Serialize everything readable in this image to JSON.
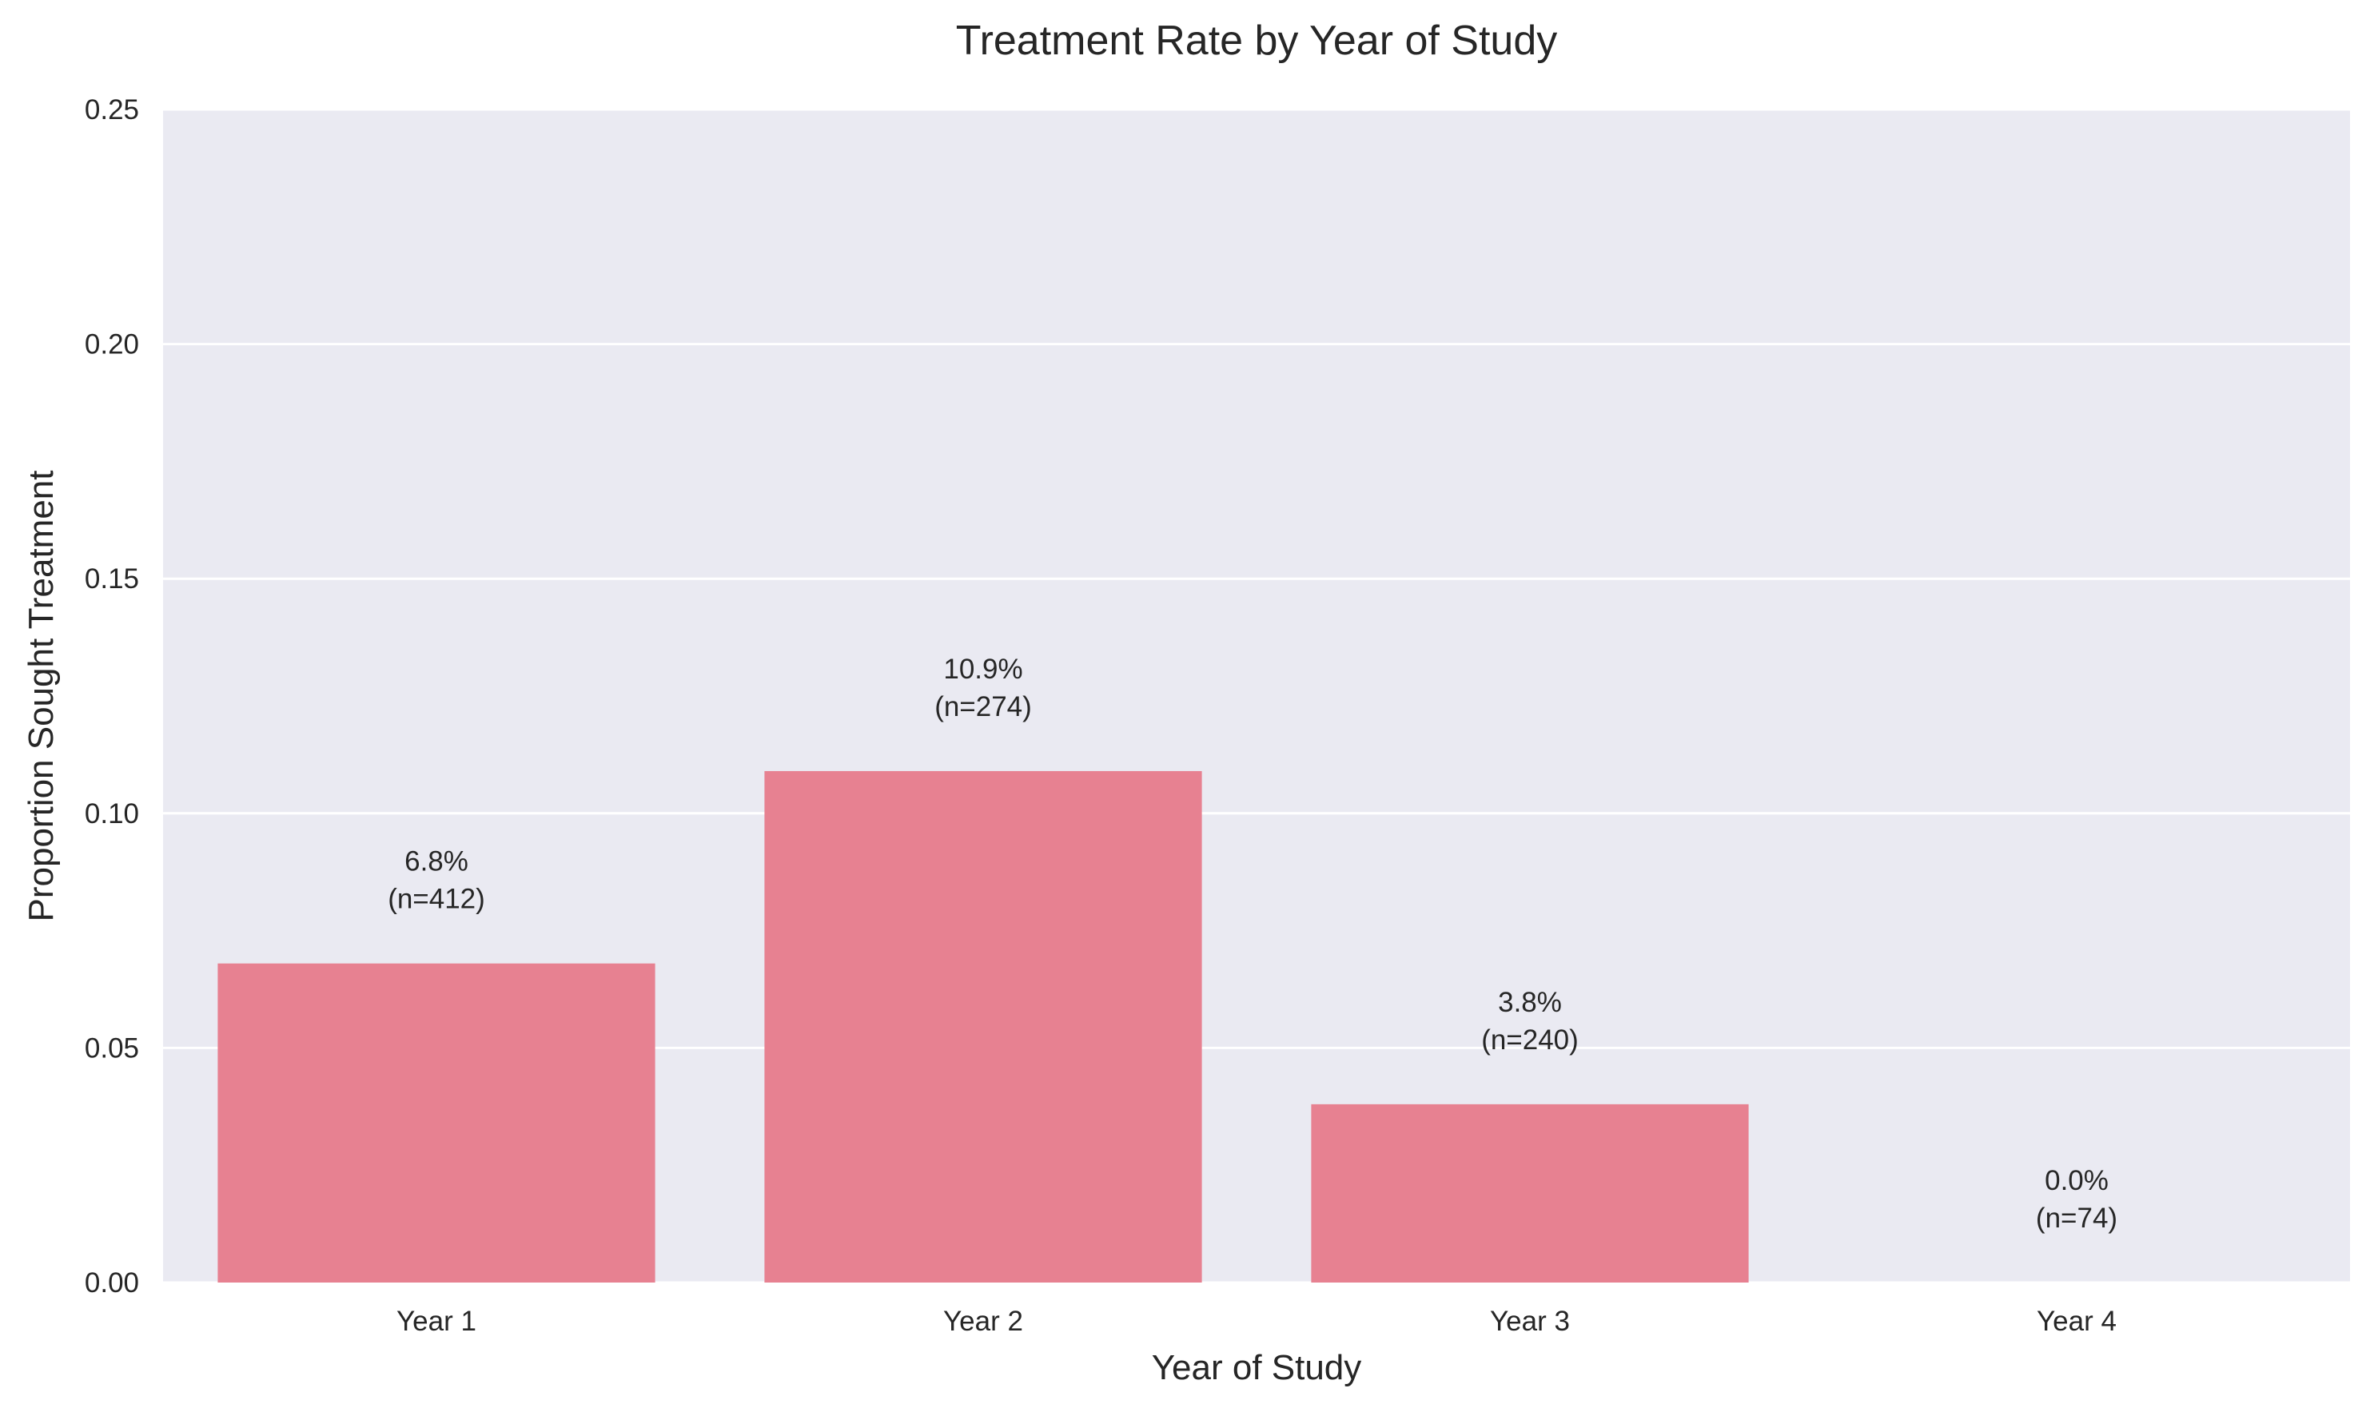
{
  "chart_data": {
    "type": "bar",
    "title": "Treatment Rate by Year of Study",
    "xlabel": "Year of Study",
    "ylabel": "Proportion Sought Treatment",
    "categories": [
      "Year 1",
      "Year 2",
      "Year 3",
      "Year 4"
    ],
    "values": [
      0.068,
      0.109,
      0.038,
      0.0
    ],
    "data_labels": [
      {
        "pct": "6.8%",
        "n": "(n=412)"
      },
      {
        "pct": "10.9%",
        "n": "(n=274)"
      },
      {
        "pct": "3.8%",
        "n": "(n=240)"
      },
      {
        "pct": "0.0%",
        "n": "(n=74)"
      }
    ],
    "ylim": [
      0,
      0.25
    ],
    "yticks": [
      "0.00",
      "0.05",
      "0.10",
      "0.15",
      "0.20",
      "0.25"
    ],
    "grid": true,
    "legend": "none",
    "colors": {
      "bar": "#e78191",
      "plot_background": "#eaeaf2",
      "grid": "#ffffff",
      "text": "#262626"
    }
  }
}
